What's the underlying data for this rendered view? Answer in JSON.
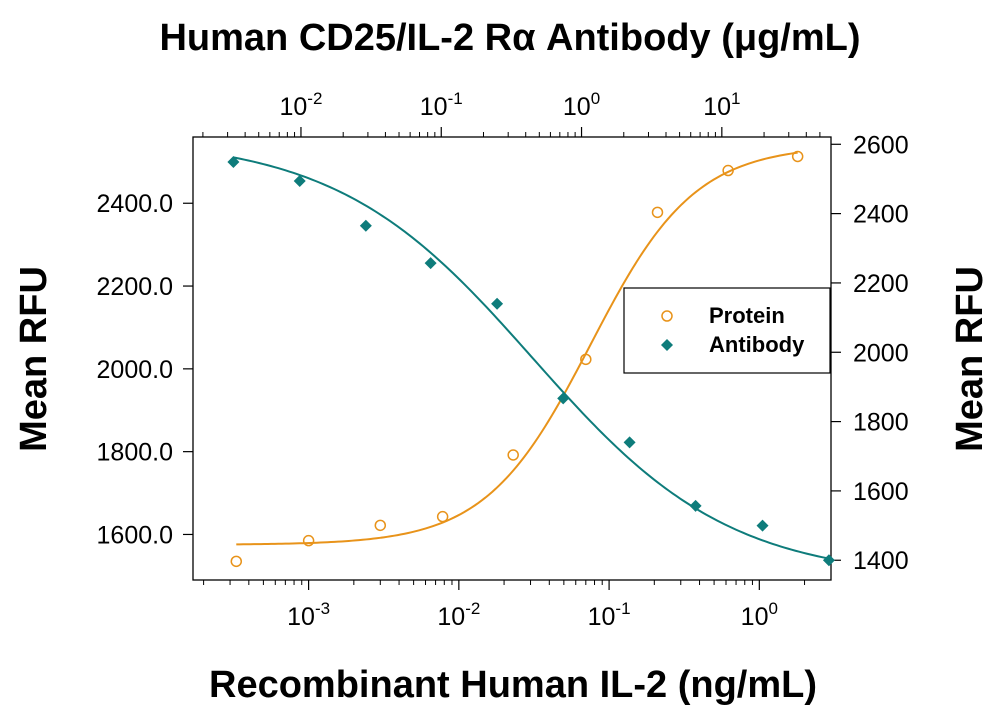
{
  "chart_data": {
    "type": "scatter",
    "title": "Human CD25/IL-2 Rα Antibody (μg/mL)",
    "xlabel": "Recombinant Human IL-2 (ng/mL)",
    "ylabel_left": "Mean RFU",
    "ylabel_right": "Mean RFU",
    "x_bottom": {
      "label": "Recombinant Human IL-2 (ng/mL)",
      "scale": "log",
      "range": [
        0.00017,
        3.0
      ],
      "tick_values": [
        0.001,
        0.01,
        0.1,
        1
      ],
      "tick_labels": [
        {
          "base": "10",
          "exp": "-3"
        },
        {
          "base": "10",
          "exp": "-2"
        },
        {
          "base": "10",
          "exp": "-1"
        },
        {
          "base": "10",
          "exp": "0"
        }
      ]
    },
    "x_top": {
      "label": "Human CD25/IL-2 Rα Antibody (μg/mL)",
      "scale": "log",
      "range": [
        0.0017,
        60
      ],
      "tick_values": [
        0.01,
        0.1,
        1,
        10
      ],
      "tick_labels": [
        {
          "base": "10",
          "exp": "-2"
        },
        {
          "base": "10",
          "exp": "-1"
        },
        {
          "base": "10",
          "exp": "0"
        },
        {
          "base": "10",
          "exp": "1"
        }
      ]
    },
    "y_left": {
      "label": "Mean RFU",
      "range": [
        1490,
        2560
      ],
      "tick_values": [
        1600,
        1800,
        2000,
        2200,
        2400
      ],
      "tick_labels": [
        "1600.0",
        "1800.0",
        "2000.0",
        "2200.0",
        "2400.0"
      ]
    },
    "y_right": {
      "label": "Mean RFU",
      "range": [
        1343,
        2621
      ],
      "tick_values": [
        1400,
        1600,
        1800,
        2000,
        2200,
        2400,
        2600
      ],
      "tick_labels": [
        "1400",
        "1600",
        "1800",
        "2000",
        "2200",
        "2400",
        "2600"
      ]
    },
    "legend_position": "right",
    "series": [
      {
        "name": "Protein",
        "marker": "open-circle",
        "color": "#E8931A",
        "x_axis": "bottom",
        "y_axis": "left",
        "x": [
          0.00033,
          0.001,
          0.003,
          0.0078,
          0.023,
          0.07,
          0.21,
          0.62,
          1.8
        ],
        "y": [
          1535,
          1585,
          1622,
          1643,
          1792,
          2023,
          2378,
          2479,
          2513
        ]
      },
      {
        "name": "Antibody",
        "marker": "filled-diamond",
        "color": "#0E7C7B",
        "x_axis": "top",
        "y_axis": "right",
        "x": [
          0.0033,
          0.0098,
          0.029,
          0.084,
          0.25,
          0.74,
          2.2,
          6.5,
          19.5,
          58
        ],
        "y": [
          2549,
          2494,
          2365,
          2257,
          2140,
          1867,
          1740,
          1557,
          1500,
          1400
        ]
      }
    ]
  }
}
